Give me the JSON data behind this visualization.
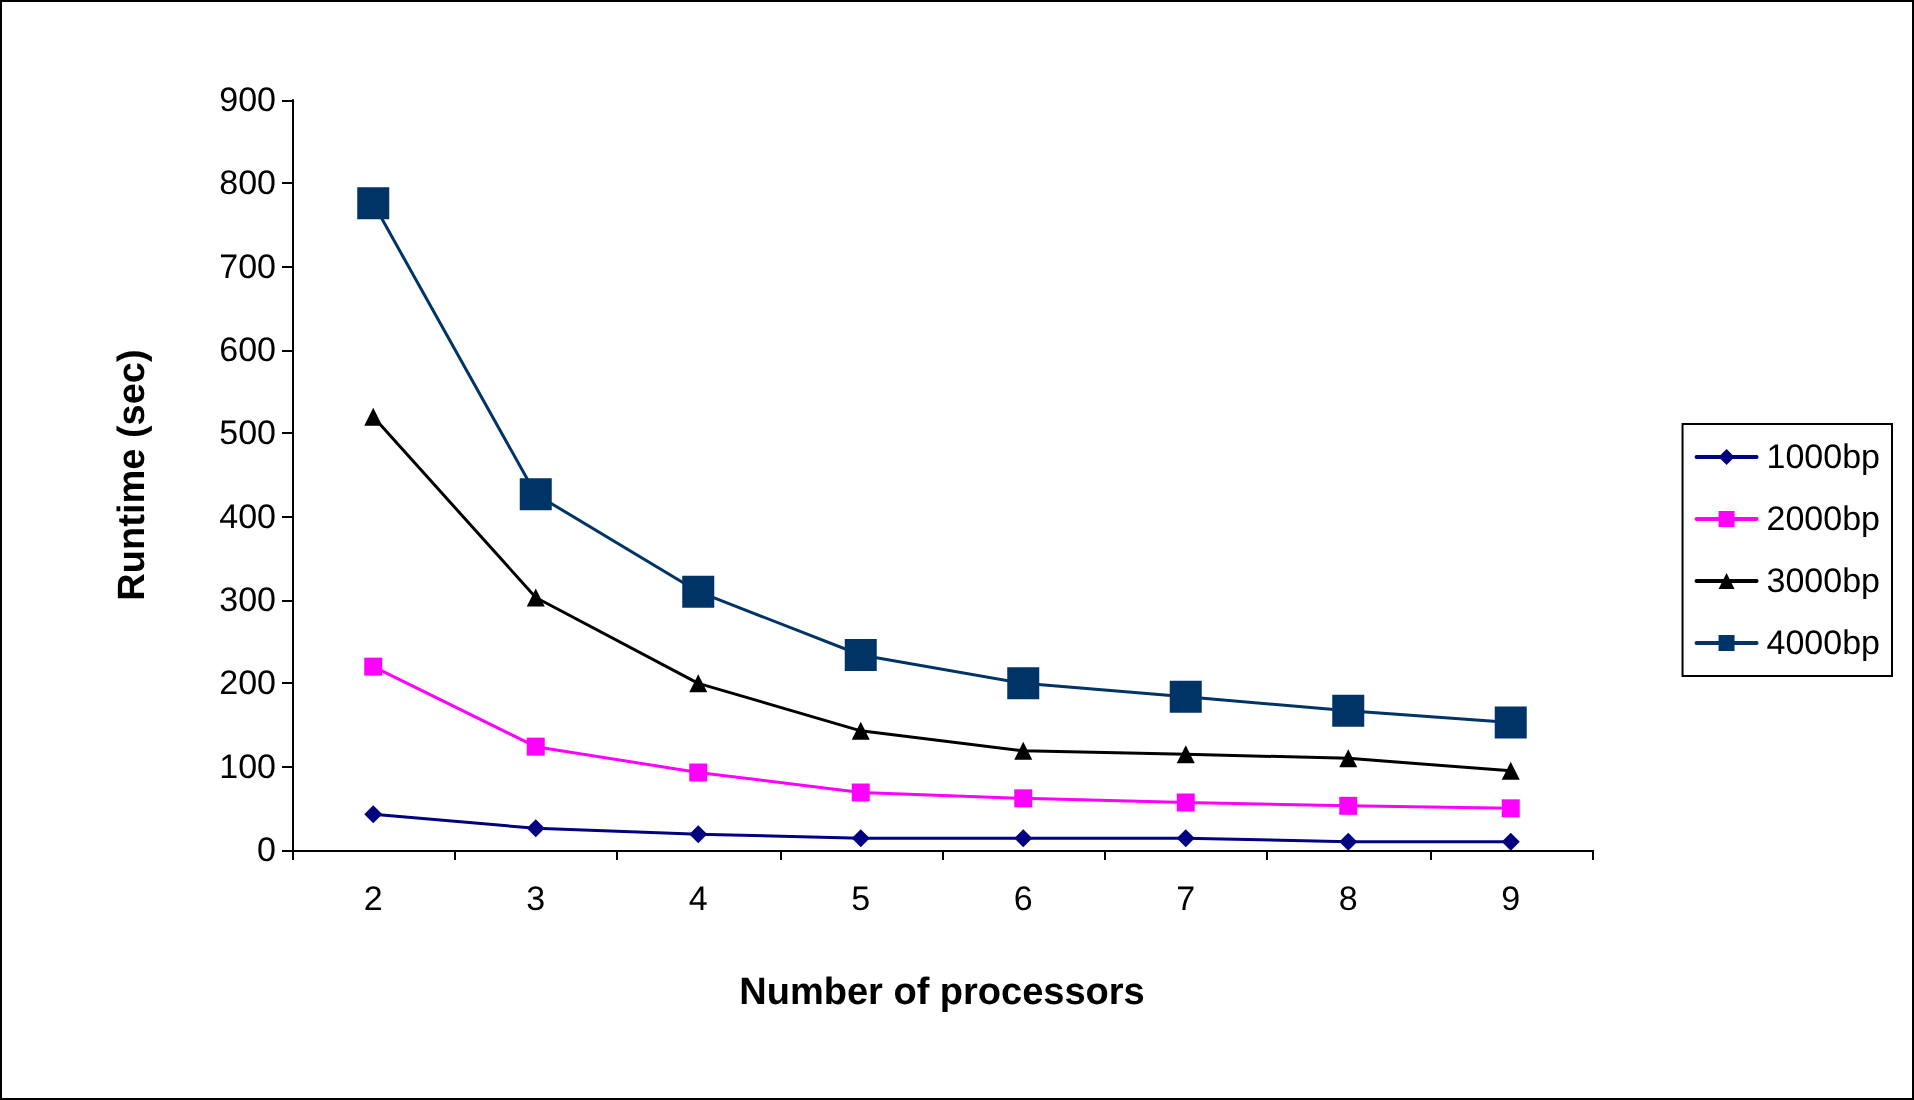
{
  "chart_data": {
    "type": "line",
    "xlabel": "Number of processors",
    "ylabel": "Runtime (sec)",
    "categories": [
      "2",
      "3",
      "4",
      "5",
      "6",
      "7",
      "8",
      "9"
    ],
    "series": [
      {
        "name": "1000bp",
        "color": "#000080",
        "marker": "diamond",
        "values": [
          43,
          26,
          19,
          14,
          14,
          14,
          10,
          10
        ]
      },
      {
        "name": "2000bp",
        "color": "#ff00ff",
        "marker": "square",
        "values": [
          220,
          124,
          93,
          69,
          62,
          57,
          53,
          50
        ]
      },
      {
        "name": "3000bp",
        "color": "#000000",
        "marker": "triangle",
        "values": [
          520,
          303,
          200,
          143,
          119,
          115,
          110,
          95
        ]
      },
      {
        "name": "4000bp",
        "color": "#003366",
        "marker": "square",
        "values": [
          776,
          427,
          310,
          234,
          200,
          184,
          167,
          153
        ]
      }
    ],
    "ylim": [
      0,
      900
    ],
    "yticks": [
      0,
      100,
      200,
      300,
      400,
      500,
      600,
      700,
      800,
      900
    ],
    "grid": false,
    "legend": "right"
  }
}
